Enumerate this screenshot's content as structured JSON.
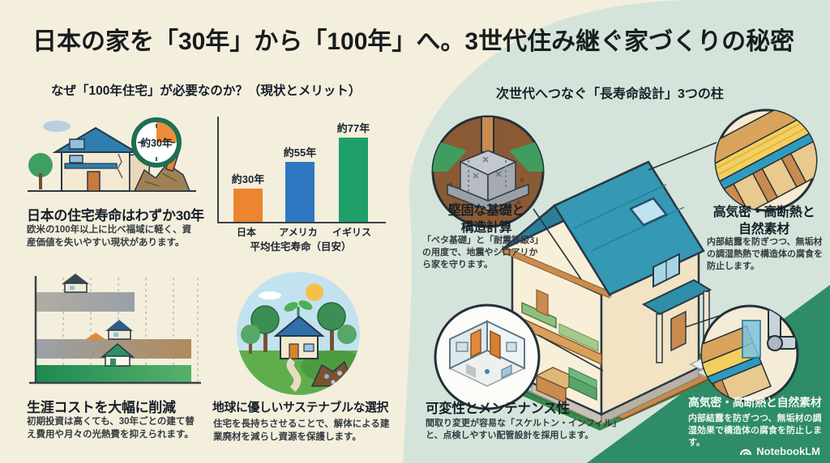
{
  "page": {
    "title": "日本の家を「30年」から「100年」へ。3世代住み継ぐ家づくりの秘密",
    "watermark": "NotebookLM"
  },
  "palette": {
    "cream_bg": "#f4eedd",
    "mint_bg": "#d5e4da",
    "dark_green": "#2e8c66",
    "bar_orange": "#ec8430",
    "bar_blue": "#2d77c2",
    "bar_green": "#1fa06b",
    "roof_teal": "#3598b4"
  },
  "left_section": {
    "header": "なぜ「100年住宅」が必要なのか？（現状とメリット）",
    "lifespan_block": {
      "clock_label": "約30年",
      "heading": "日本の住宅寿命はわずか30年",
      "body": "欧米の100年以上に比べ福域に軽く、資産価値を失いやすい現状があります。"
    },
    "cost_block": {
      "heading": "生涯コストを大幅に削減",
      "body": "初期投資は高くても、30年ごとの建て替え費用や月々の光熱費を抑えられます。"
    },
    "sustainable_block": {
      "heading": "地球に優しいサステナブルな選択",
      "body": "住宅を長持ちさせることで、解体による建業廃材を減らし資源を保護します。"
    }
  },
  "chart_data": {
    "type": "bar",
    "title": "",
    "categories": [
      "日本",
      "アメリカ",
      "イギリス"
    ],
    "values": [
      30,
      55,
      77
    ],
    "value_labels": [
      "約30年",
      "約55年",
      "約77年"
    ],
    "colors": [
      "#ec8430",
      "#2d77c2",
      "#1fa06b"
    ],
    "xlabel": "平均住宅寿命（目安）",
    "ylabel": "",
    "ylim": [
      0,
      85
    ],
    "grid": false,
    "legend": "none"
  },
  "right_section": {
    "header": "次世代へつなぐ「長寿命設計」3つの柱",
    "callouts": [
      {
        "id": "foundation",
        "heading_lines": [
          "堅固な基礎と",
          "構造計算"
        ],
        "body": "「ベタ基礎」と「耐震等級3」の用度で、地震やシロアリから家を守ります。"
      },
      {
        "id": "insulation",
        "heading_lines": [
          "高気密・高断熱と",
          "自然素材"
        ],
        "body": "内部結露を防ぎつつ、無垢材の調湿熱熱で構造体の腐食を防止します。"
      },
      {
        "id": "flexibility",
        "heading": "可変性とメンテナンス性",
        "body": "間取り変更が容易な「スケルトン・インフィル」と、点検しやすい配管設計を採用します。"
      },
      {
        "id": "materials",
        "heading": "高気密・高断熱と自然素材",
        "body": "内部結露を防ぎつつ、無垢材の調湿効果で構造体の腐食を防止します。"
      }
    ]
  }
}
